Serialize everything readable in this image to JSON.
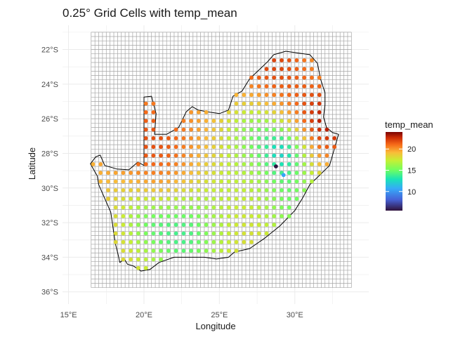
{
  "chart_data": {
    "type": "scatter",
    "title": "0.25° Grid Cells with temp_mean",
    "xlabel": "Longitude",
    "ylabel": "Latitude",
    "xlim": [
      14.6,
      34.9
    ],
    "ylim": [
      -36.7,
      -20.6
    ],
    "x_ticks": [
      15,
      20,
      25,
      30
    ],
    "x_tick_labels": [
      "15°E",
      "20°E",
      "25°E",
      "30°E"
    ],
    "y_ticks": [
      -22,
      -24,
      -26,
      -28,
      -30,
      -32,
      -34,
      -36
    ],
    "y_tick_labels": [
      "22°S",
      "24°S",
      "26°S",
      "28°S",
      "30°S",
      "32°S",
      "34°S",
      "36°S"
    ],
    "grid_cells": {
      "lon_min": 16.5,
      "lon_max": 33.75,
      "lat_min": -35.75,
      "lat_max": -21,
      "step": 0.25
    },
    "grid": true,
    "legend": {
      "title": "temp_mean",
      "position": "right",
      "range": [
        5.5,
        24.0
      ],
      "ticks": [
        10,
        15,
        20
      ],
      "tick_labels": [
        "10",
        "15",
        "20"
      ],
      "colormap": "turbo"
    },
    "outline": [
      [
        16.45,
        -28.6
      ],
      [
        16.8,
        -28.2
      ],
      [
        17.1,
        -28.1
      ],
      [
        17.4,
        -28.7
      ],
      [
        18.2,
        -28.9
      ],
      [
        19.0,
        -28.95
      ],
      [
        19.6,
        -28.5
      ],
      [
        20.0,
        -28.7
      ],
      [
        20.0,
        -24.75
      ],
      [
        20.5,
        -24.7
      ],
      [
        20.8,
        -25.7
      ],
      [
        20.7,
        -26.9
      ],
      [
        21.5,
        -26.9
      ],
      [
        22.3,
        -26.5
      ],
      [
        22.8,
        -25.6
      ],
      [
        23.2,
        -25.3
      ],
      [
        23.6,
        -25.5
      ],
      [
        24.2,
        -25.6
      ],
      [
        25.0,
        -25.7
      ],
      [
        25.6,
        -25.5
      ],
      [
        25.9,
        -24.7
      ],
      [
        26.5,
        -24.4
      ],
      [
        27.0,
        -23.7
      ],
      [
        27.6,
        -23.2
      ],
      [
        28.2,
        -22.7
      ],
      [
        28.6,
        -22.3
      ],
      [
        29.4,
        -22.1
      ],
      [
        30.2,
        -22.2
      ],
      [
        31.0,
        -22.3
      ],
      [
        31.5,
        -22.8
      ],
      [
        31.7,
        -23.7
      ],
      [
        32.0,
        -24.5
      ],
      [
        32.0,
        -25.2
      ],
      [
        31.9,
        -25.9
      ],
      [
        32.1,
        -26.5
      ],
      [
        32.5,
        -26.8
      ],
      [
        32.9,
        -26.9
      ],
      [
        32.6,
        -27.8
      ],
      [
        32.3,
        -28.7
      ],
      [
        31.6,
        -29.3
      ],
      [
        31.0,
        -29.8
      ],
      [
        30.5,
        -30.6
      ],
      [
        30.0,
        -31.3
      ],
      [
        29.0,
        -32.2
      ],
      [
        28.0,
        -32.9
      ],
      [
        27.0,
        -33.5
      ],
      [
        26.0,
        -33.7
      ],
      [
        25.6,
        -34.0
      ],
      [
        24.8,
        -34.1
      ],
      [
        24.0,
        -34.0
      ],
      [
        23.0,
        -34.0
      ],
      [
        22.0,
        -34.0
      ],
      [
        21.0,
        -34.3
      ],
      [
        20.4,
        -34.7
      ],
      [
        19.8,
        -34.8
      ],
      [
        19.3,
        -34.5
      ],
      [
        18.9,
        -34.4
      ],
      [
        18.7,
        -34.1
      ],
      [
        18.4,
        -34.3
      ],
      [
        18.3,
        -33.9
      ],
      [
        18.1,
        -33.2
      ],
      [
        18.0,
        -32.6
      ],
      [
        17.9,
        -32.0
      ],
      [
        17.8,
        -31.4
      ],
      [
        17.4,
        -30.6
      ],
      [
        17.0,
        -29.8
      ],
      [
        16.9,
        -29.3
      ],
      [
        16.45,
        -28.6
      ]
    ],
    "highlights": [
      {
        "x": 28.75,
        "y": -28.75,
        "value": 5.6
      },
      {
        "x": 29.25,
        "y": -29.25,
        "value": 10.5
      }
    ]
  }
}
